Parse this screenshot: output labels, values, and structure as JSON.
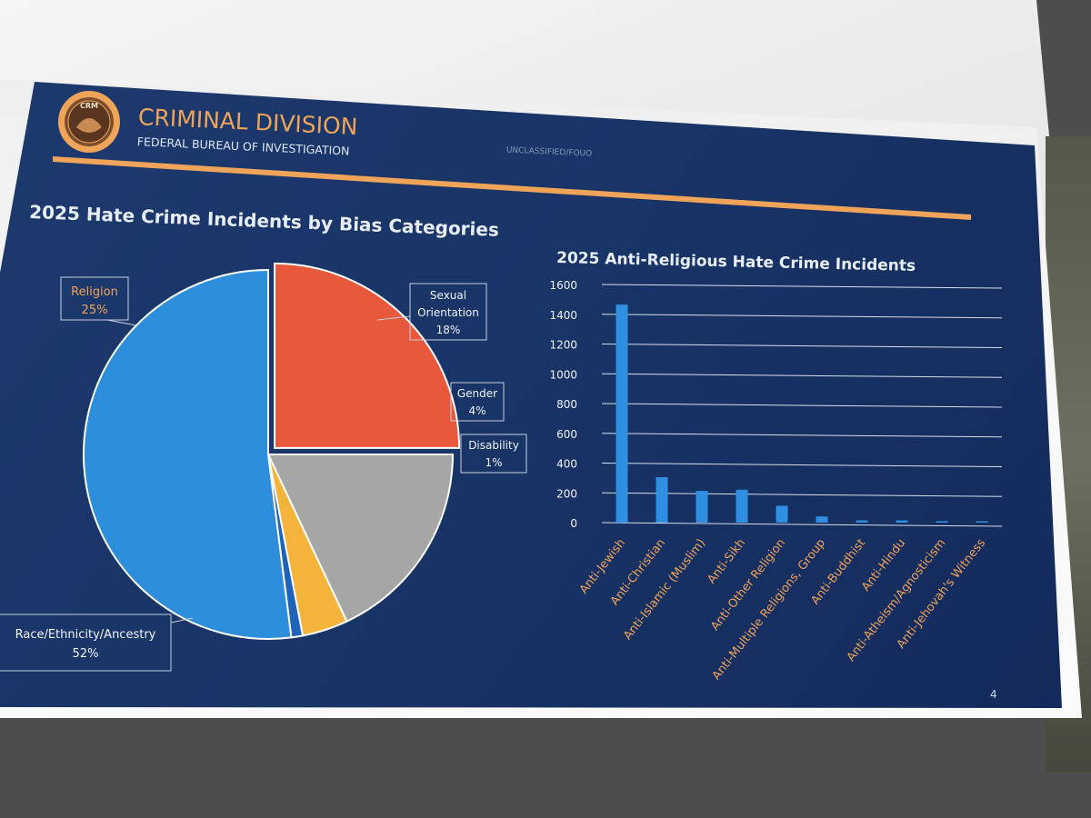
{
  "header": {
    "division": "CRIMINAL DIVISION",
    "agency": "FEDERAL BUREAU OF INVESTIGATION",
    "classification": "UNCLASSIFIED/FOUO",
    "logo_text": "CRM",
    "page_number": "4"
  },
  "colors": {
    "slide_background": "#1a3566",
    "accent": "#f0a45a",
    "race": "#2d8fdc",
    "religion": "#e8583a",
    "sexual_orientation": "#a6a6a6",
    "gender": "#f4b33a",
    "disability": "#1f63b8",
    "bar": "#2f8fe0"
  },
  "chart_data": [
    {
      "type": "pie",
      "title": "2025 Hate Crime Incidents by Bias Categories",
      "slices": [
        {
          "label": "Religion",
          "percent_label": "25%",
          "value": 25,
          "color": "#e8583a",
          "exploded": true
        },
        {
          "label": "Sexual Orientation",
          "percent_label": "18%",
          "value": 18,
          "color": "#a6a6a6",
          "exploded": false
        },
        {
          "label": "Gender",
          "percent_label": "4%",
          "value": 4,
          "color": "#f4b33a",
          "exploded": false
        },
        {
          "label": "Disability",
          "percent_label": "1%",
          "value": 1,
          "color": "#1f63b8",
          "exploded": false
        },
        {
          "label": "Race/Ethnicity/Ancestry",
          "percent_label": "52%",
          "value": 52,
          "color": "#2d8fdc",
          "exploded": false
        }
      ]
    },
    {
      "type": "bar",
      "title": "2025 Anti-Religious Hate Crime Incidents",
      "categories": [
        "Anti-Jewish",
        "Anti-Christian",
        "Anti-Islamic (Muslim)",
        "Anti-Sikh",
        "Anti-Other Religion",
        "Anti-Multiple Religions, Group",
        "Anti-Buddhist",
        "Anti-Hindu",
        "Anti-Atheism/Agnosticism",
        "Anti-Jehovah's Witness"
      ],
      "values": [
        1465,
        305,
        213,
        221,
        113,
        41,
        15,
        15,
        10,
        9
      ],
      "ylim": [
        0,
        1600
      ],
      "yticks": [
        "0",
        "200",
        "400",
        "600",
        "800",
        "1000",
        "1200",
        "1400",
        "1600"
      ],
      "grid": true,
      "color": "#2f8fe0"
    }
  ]
}
